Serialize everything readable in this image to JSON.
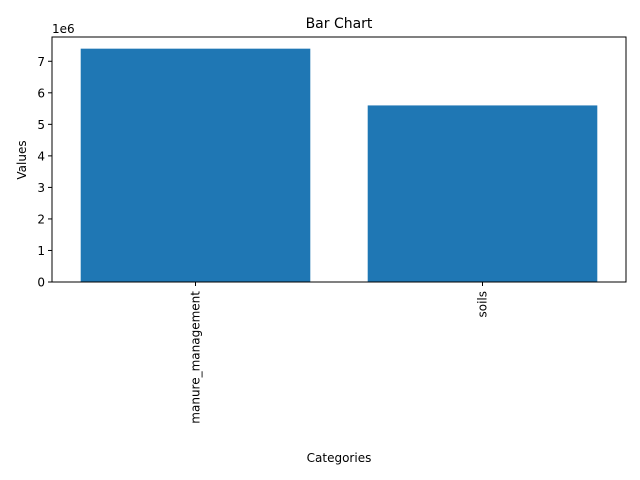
{
  "chart_data": {
    "type": "bar",
    "title": "Bar Chart",
    "xlabel": "Categories",
    "ylabel": "Values",
    "categories": [
      "manure_management",
      "soils"
    ],
    "values": [
      7400000,
      5600000
    ],
    "ylim": [
      0,
      7770000
    ],
    "yticks": [
      0,
      1,
      2,
      3,
      4,
      5,
      6,
      7
    ],
    "ytick_multiplier": 1000000,
    "offset_label": "1e6",
    "bar_color": "#1f77b4",
    "grid": false,
    "legend": "none"
  }
}
